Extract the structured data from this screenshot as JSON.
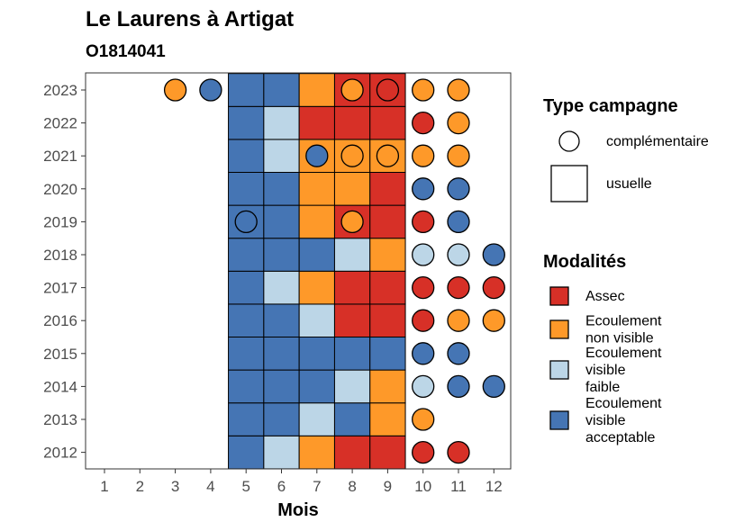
{
  "chart_data": {
    "type": "heatmap",
    "title": "Le Laurens à Artigat",
    "subtitle": "O1814041",
    "xlabel": "Mois",
    "ylabel": "",
    "x_ticks": [
      "1",
      "2",
      "3",
      "4",
      "5",
      "6",
      "7",
      "8",
      "9",
      "10",
      "11",
      "12"
    ],
    "y_ticks": [
      "2012",
      "2013",
      "2014",
      "2015",
      "2016",
      "2017",
      "2018",
      "2019",
      "2020",
      "2021",
      "2022",
      "2023"
    ],
    "grid": false,
    "legend_placement": "right",
    "categories_colors": {
      "Assec": "#d73027",
      "Ecoulement non visible": "#fe9929",
      "Ecoulement visible faible": "#bcd6e7",
      "Ecoulement visible acceptable": "#4575b4"
    },
    "usuelle": [
      {
        "year": 2012,
        "values": {
          "5": "Ecoulement visible acceptable",
          "6": "Ecoulement visible faible",
          "7": "Ecoulement non visible",
          "8": "Assec",
          "9": "Assec"
        }
      },
      {
        "year": 2013,
        "values": {
          "5": "Ecoulement visible acceptable",
          "6": "Ecoulement visible acceptable",
          "7": "Ecoulement visible faible",
          "8": "Ecoulement visible acceptable",
          "9": "Ecoulement non visible"
        }
      },
      {
        "year": 2014,
        "values": {
          "5": "Ecoulement visible acceptable",
          "6": "Ecoulement visible acceptable",
          "7": "Ecoulement visible acceptable",
          "8": "Ecoulement visible faible",
          "9": "Ecoulement non visible"
        }
      },
      {
        "year": 2015,
        "values": {
          "5": "Ecoulement visible acceptable",
          "6": "Ecoulement visible acceptable",
          "7": "Ecoulement visible acceptable",
          "8": "Ecoulement visible acceptable",
          "9": "Ecoulement visible acceptable"
        }
      },
      {
        "year": 2016,
        "values": {
          "5": "Ecoulement visible acceptable",
          "6": "Ecoulement visible acceptable",
          "7": "Ecoulement visible faible",
          "8": "Assec",
          "9": "Assec"
        }
      },
      {
        "year": 2017,
        "values": {
          "5": "Ecoulement visible acceptable",
          "6": "Ecoulement visible faible",
          "7": "Ecoulement non visible",
          "8": "Assec",
          "9": "Assec"
        }
      },
      {
        "year": 2018,
        "values": {
          "5": "Ecoulement visible acceptable",
          "6": "Ecoulement visible acceptable",
          "7": "Ecoulement visible acceptable",
          "8": "Ecoulement visible faible",
          "9": "Ecoulement non visible"
        }
      },
      {
        "year": 2019,
        "values": {
          "5": "Ecoulement visible acceptable",
          "6": "Ecoulement visible acceptable",
          "7": "Ecoulement non visible",
          "8": "Assec",
          "9": "Assec"
        }
      },
      {
        "year": 2020,
        "values": {
          "5": "Ecoulement visible acceptable",
          "6": "Ecoulement visible acceptable",
          "7": "Ecoulement non visible",
          "8": "Ecoulement non visible",
          "9": "Assec"
        }
      },
      {
        "year": 2021,
        "values": {
          "5": "Ecoulement visible acceptable",
          "6": "Ecoulement visible faible",
          "7": "Ecoulement non visible",
          "8": "Ecoulement non visible",
          "9": "Ecoulement non visible"
        }
      },
      {
        "year": 2022,
        "values": {
          "5": "Ecoulement visible acceptable",
          "6": "Ecoulement visible faible",
          "7": "Assec",
          "8": "Assec",
          "9": "Assec"
        }
      },
      {
        "year": 2023,
        "values": {
          "5": "Ecoulement visible acceptable",
          "6": "Ecoulement visible acceptable",
          "7": "Ecoulement non visible",
          "8": "Assec",
          "9": "Assec"
        }
      }
    ],
    "complementaire": [
      {
        "year": 2012,
        "month": 10,
        "value": "Assec"
      },
      {
        "year": 2012,
        "month": 11,
        "value": "Assec"
      },
      {
        "year": 2013,
        "month": 10,
        "value": "Ecoulement non visible"
      },
      {
        "year": 2014,
        "month": 10,
        "value": "Ecoulement visible faible"
      },
      {
        "year": 2014,
        "month": 11,
        "value": "Ecoulement visible acceptable"
      },
      {
        "year": 2014,
        "month": 12,
        "value": "Ecoulement visible acceptable"
      },
      {
        "year": 2015,
        "month": 10,
        "value": "Ecoulement visible acceptable"
      },
      {
        "year": 2015,
        "month": 11,
        "value": "Ecoulement visible acceptable"
      },
      {
        "year": 2016,
        "month": 10,
        "value": "Assec"
      },
      {
        "year": 2016,
        "month": 11,
        "value": "Ecoulement non visible"
      },
      {
        "year": 2016,
        "month": 12,
        "value": "Ecoulement non visible"
      },
      {
        "year": 2017,
        "month": 10,
        "value": "Assec"
      },
      {
        "year": 2017,
        "month": 11,
        "value": "Assec"
      },
      {
        "year": 2017,
        "month": 12,
        "value": "Assec"
      },
      {
        "year": 2018,
        "month": 10,
        "value": "Ecoulement visible faible"
      },
      {
        "year": 2018,
        "month": 11,
        "value": "Ecoulement visible faible"
      },
      {
        "year": 2018,
        "month": 12,
        "value": "Ecoulement visible acceptable"
      },
      {
        "year": 2019,
        "month": 5,
        "value": "Ecoulement visible acceptable"
      },
      {
        "year": 2019,
        "month": 8,
        "value": "Ecoulement non visible"
      },
      {
        "year": 2019,
        "month": 10,
        "value": "Assec"
      },
      {
        "year": 2019,
        "month": 11,
        "value": "Ecoulement visible acceptable"
      },
      {
        "year": 2020,
        "month": 10,
        "value": "Ecoulement visible acceptable"
      },
      {
        "year": 2020,
        "month": 11,
        "value": "Ecoulement visible acceptable"
      },
      {
        "year": 2021,
        "month": 7,
        "value": "Ecoulement visible acceptable"
      },
      {
        "year": 2021,
        "month": 8,
        "value": "Ecoulement non visible"
      },
      {
        "year": 2021,
        "month": 9,
        "value": "Ecoulement non visible"
      },
      {
        "year": 2021,
        "month": 10,
        "value": "Ecoulement non visible"
      },
      {
        "year": 2021,
        "month": 11,
        "value": "Ecoulement non visible"
      },
      {
        "year": 2022,
        "month": 10,
        "value": "Assec"
      },
      {
        "year": 2022,
        "month": 11,
        "value": "Ecoulement non visible"
      },
      {
        "year": 2023,
        "month": 3,
        "value": "Ecoulement non visible"
      },
      {
        "year": 2023,
        "month": 4,
        "value": "Ecoulement visible acceptable"
      },
      {
        "year": 2023,
        "month": 8,
        "value": "Ecoulement non visible"
      },
      {
        "year": 2023,
        "month": 9,
        "value": "Assec"
      },
      {
        "year": 2023,
        "month": 10,
        "value": "Ecoulement non visible"
      },
      {
        "year": 2023,
        "month": 11,
        "value": "Ecoulement non visible"
      }
    ],
    "legend_type": {
      "title": "Type campagne",
      "entries": [
        {
          "key": "complementaire",
          "label": "complémentaire"
        },
        {
          "key": "usuelle",
          "label": "usuelle"
        }
      ]
    },
    "legend_modalites": {
      "title": "Modalités",
      "entries": [
        {
          "key": "Assec",
          "lines": [
            "Assec"
          ]
        },
        {
          "key": "Ecoulement non visible",
          "lines": [
            "Ecoulement",
            "non visible"
          ]
        },
        {
          "key": "Ecoulement visible faible",
          "lines": [
            "Ecoulement",
            "visible",
            "faible"
          ]
        },
        {
          "key": "Ecoulement visible acceptable",
          "lines": [
            "Ecoulement",
            "visible",
            "acceptable"
          ]
        }
      ]
    }
  }
}
